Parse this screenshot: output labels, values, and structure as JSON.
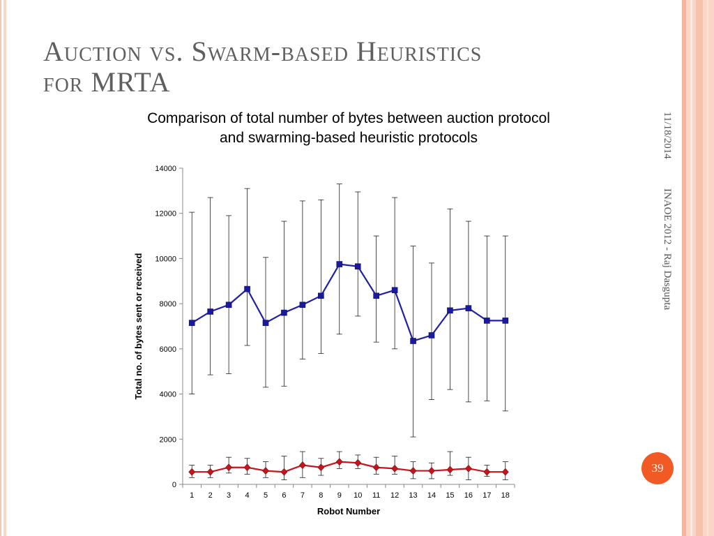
{
  "slide": {
    "title_line1": "Auction vs. Swarm-based Heuristics",
    "title_line2": "for MRTA",
    "date": "11/18/2014",
    "author": "INAOE 2012 - Raj Dasgupta",
    "slide_number": "39"
  },
  "colors": {
    "auction": "#1f1fa8",
    "auction_marker": "#1a1a9e",
    "swarm": "#c4161c",
    "swarm_marker": "#c4161c",
    "error_bar": "#000000",
    "accent": "#f15a24"
  },
  "chart_data": {
    "type": "line",
    "title": "Comparison of total number of bytes between auction protocol and swarming-based heuristic protocols",
    "title_line1": "Comparison of total number of bytes between auction protocol",
    "title_line2": "and swarming-based heuristic protocols",
    "xlabel": "Robot Number",
    "ylabel": "Total no. of bytes sent or received",
    "categories": [
      "1",
      "2",
      "3",
      "4",
      "5",
      "6",
      "7",
      "8",
      "9",
      "10",
      "11",
      "12",
      "13",
      "14",
      "15",
      "16",
      "17",
      "18"
    ],
    "ylim": [
      0,
      14000
    ],
    "yticks": [
      0,
      2000,
      4000,
      6000,
      8000,
      10000,
      12000,
      14000
    ],
    "ytick_labels": [
      "0",
      "2000",
      "4000",
      "6000",
      "8000",
      "10000",
      "12000",
      "14000"
    ],
    "grid": false,
    "series": [
      {
        "marker": "square",
        "values": [
          7150,
          7650,
          7950,
          8650,
          7150,
          7600,
          7950,
          8350,
          9750,
          9650,
          8350,
          8600,
          6350,
          6600,
          7700,
          7800,
          7250,
          7250
        ],
        "error_low": [
          4000,
          4850,
          4900,
          6150,
          4300,
          4350,
          5550,
          5800,
          6650,
          7450,
          6300,
          6000,
          2100,
          3750,
          4200,
          3650,
          3700,
          3250
        ],
        "error_high": [
          12050,
          12700,
          11900,
          13100,
          10050,
          11650,
          12550,
          12600,
          13300,
          12950,
          11000,
          12700,
          10550,
          9800,
          12200,
          11650,
          11000,
          11000
        ]
      },
      {
        "marker": "diamond",
        "values": [
          550,
          550,
          750,
          750,
          600,
          550,
          850,
          750,
          1000,
          950,
          750,
          700,
          600,
          600,
          650,
          700,
          550,
          550
        ],
        "error_low": [
          300,
          300,
          500,
          450,
          300,
          200,
          300,
          400,
          700,
          700,
          450,
          450,
          250,
          250,
          400,
          200,
          350,
          200
        ],
        "error_high": [
          850,
          850,
          1200,
          1150,
          1000,
          1250,
          1450,
          1150,
          1450,
          1300,
          1200,
          1250,
          1000,
          950,
          1450,
          1200,
          850,
          1000
        ]
      }
    ]
  }
}
